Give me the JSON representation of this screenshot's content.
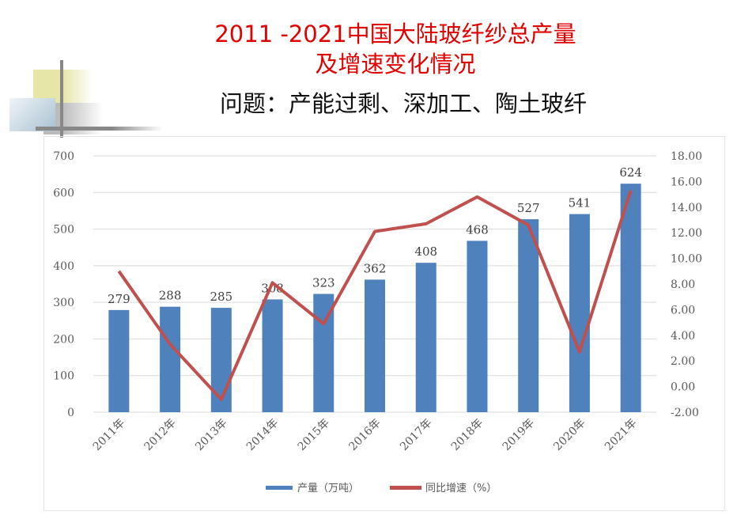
{
  "title_line1": "2011 -2021中国大陆玻纤纱总产量",
  "title_line2": "及增速变化情况",
  "subtitle": "问题：产能过剩、深加工、陶土玻纤",
  "chart_data": {
    "type": "bar",
    "categories": [
      "2011年",
      "2012年",
      "2013年",
      "2014年",
      "2015年",
      "2016年",
      "2017年",
      "2018年",
      "2019年",
      "2020年",
      "2021年"
    ],
    "series": [
      {
        "name": "产量（万吨）",
        "type": "bar",
        "axis": "left",
        "color": "#4f81bd",
        "values": [
          279,
          288,
          285,
          308,
          323,
          362,
          408,
          468,
          527,
          541,
          624
        ]
      },
      {
        "name": "同比增速（%）",
        "type": "line",
        "axis": "right",
        "color": "#c0504d",
        "values": [
          9.0,
          3.3,
          -1.0,
          8.1,
          4.9,
          12.1,
          12.7,
          14.8,
          12.6,
          2.7,
          15.3
        ]
      }
    ],
    "ylim": [
      0,
      700
    ],
    "yticks": [
      "0",
      "100",
      "200",
      "300",
      "400",
      "500",
      "600",
      "700"
    ],
    "y2lim": [
      -2,
      18
    ],
    "y2ticks": [
      "-2.00",
      "0.00",
      "2.00",
      "4.00",
      "6.00",
      "8.00",
      "10.00",
      "12.00",
      "14.00",
      "16.00",
      "18.00"
    ],
    "grid": true,
    "legend": "bottom"
  }
}
